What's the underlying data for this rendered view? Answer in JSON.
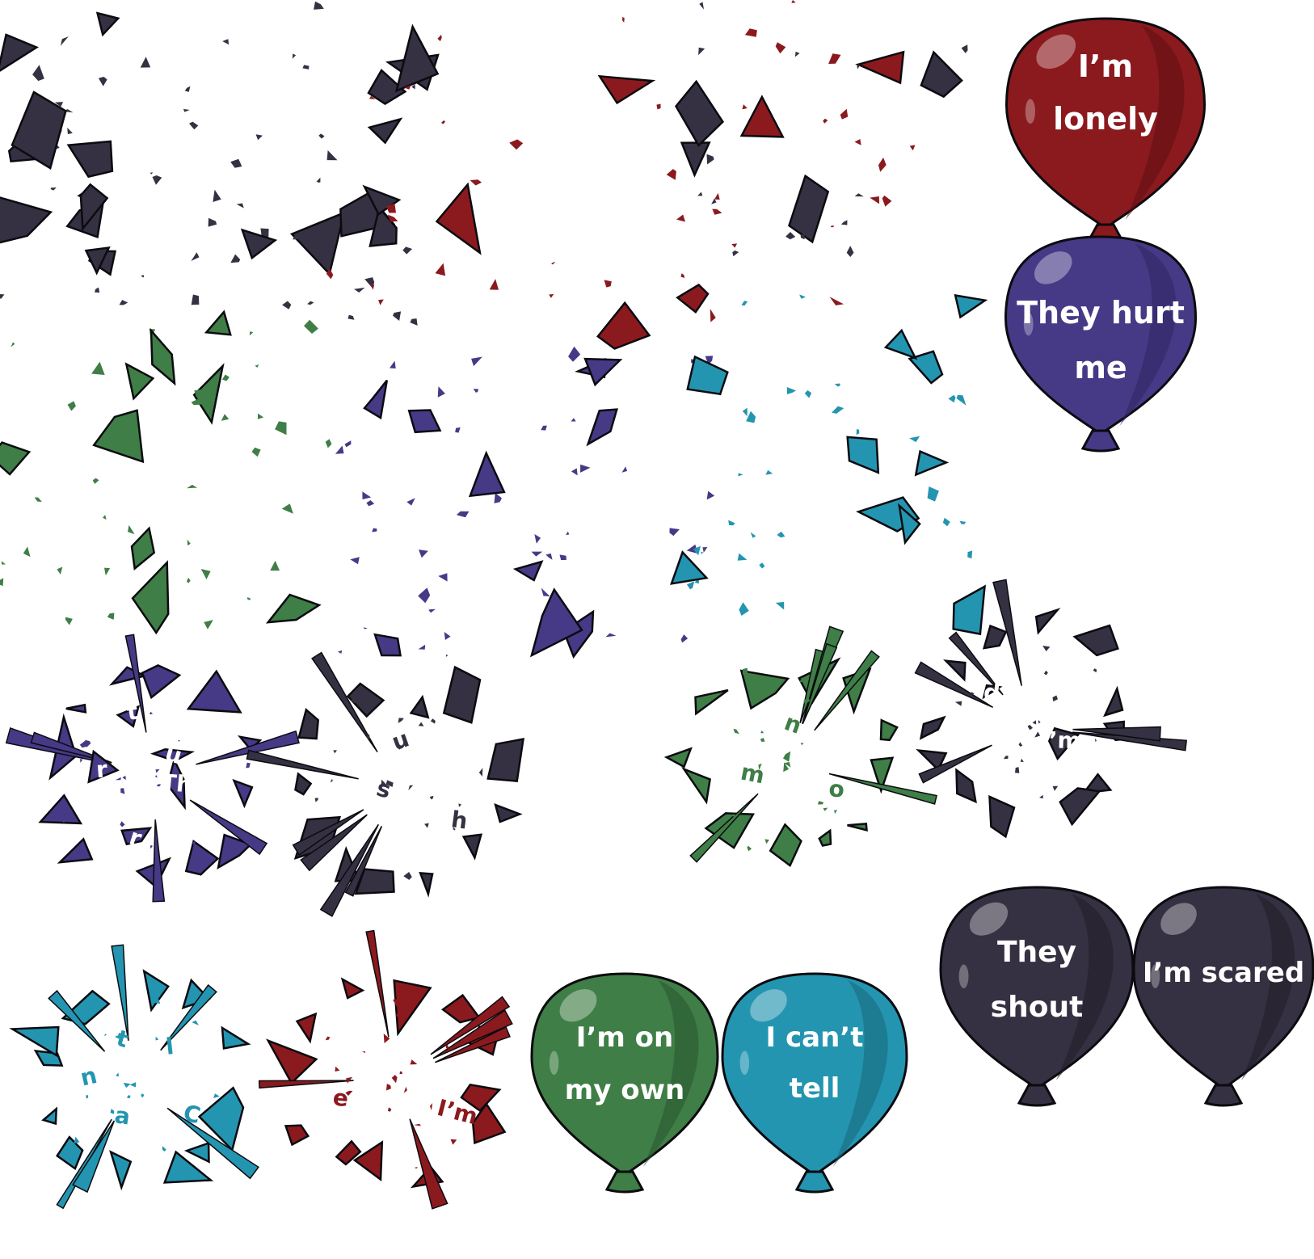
{
  "balloons": [
    {
      "id": "red",
      "label_lines": [
        "I’m",
        "lonely"
      ],
      "color": "#8b1a1e",
      "dark": "#5e1013",
      "light": "#b9474b"
    },
    {
      "id": "indigo",
      "label_lines": [
        "They hurt",
        "me"
      ],
      "color": "#463a86",
      "dark": "#2d2460",
      "light": "#6f64ad"
    },
    {
      "id": "green",
      "label_lines": [
        "I’m on",
        "my own"
      ],
      "color": "#3f7e46",
      "dark": "#285530",
      "light": "#6aa270"
    },
    {
      "id": "teal",
      "label_lines": [
        "I can’t",
        "tell"
      ],
      "color": "#2495b0",
      "dark": "#17667a",
      "light": "#5ab9cf"
    },
    {
      "id": "navy-shout",
      "label_lines": [
        "They",
        "shout"
      ],
      "color": "#353142",
      "dark": "#1f1c28",
      "light": "#5b5669"
    },
    {
      "id": "navy-scared",
      "label_lines": [
        "I’m scared"
      ],
      "color": "#353142",
      "dark": "#1f1c28",
      "light": "#5b5669"
    }
  ],
  "burst_fragments": {
    "indigo": [
      "Th",
      "r",
      "r",
      "t",
      "u"
    ],
    "navy-shout": [
      "h",
      "s",
      "u"
    ],
    "green": [
      "o",
      "m",
      "n"
    ],
    "navy-scared": [
      "I’m",
      "d"
    ],
    "teal": [
      "C",
      "a",
      "n",
      "t",
      "l"
    ],
    "red": [
      "I’m",
      "e",
      "y"
    ]
  },
  "palette": {
    "red": "#8b1a1e",
    "indigo": "#463a86",
    "green": "#3f7e46",
    "teal": "#2495b0",
    "navy": "#353142",
    "outline": "#0b0b10"
  }
}
